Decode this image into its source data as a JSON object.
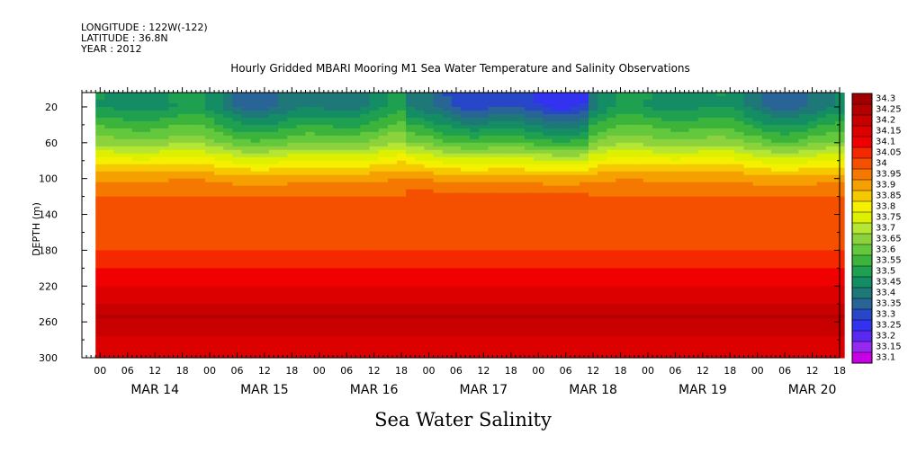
{
  "header": {
    "longitude": "LONGITUDE : 122W(-122)",
    "latitude": "LATITUDE : 36.8N",
    "year": "YEAR : 2012"
  },
  "title": "Hourly Gridded MBARI Mooring M1 Sea Water Temperature and Salinity Observations",
  "bottom_title": "Sea Water Salinity",
  "chart_data": {
    "type": "heatmap",
    "title": "Hourly Gridded MBARI Mooring M1 Sea Water Temperature and Salinity Observations",
    "variable": "Sea Water Salinity",
    "ylabel": "DEPTH (m)",
    "y_ticks": [
      20,
      60,
      100,
      140,
      180,
      220,
      260,
      300
    ],
    "ylim": [
      300,
      4
    ],
    "x_hour_ticks": [
      "00",
      "06",
      "12",
      "18",
      "00",
      "06",
      "12",
      "18",
      "00",
      "06",
      "12",
      "18",
      "00",
      "06",
      "12",
      "18",
      "00",
      "06",
      "12",
      "18",
      "00",
      "06",
      "12",
      "18",
      "00",
      "06",
      "12",
      "18"
    ],
    "x_day_labels": [
      "MAR 14",
      "MAR 15",
      "MAR 16",
      "MAR 17",
      "MAR 18",
      "MAR 19",
      "MAR 20"
    ],
    "x_range_hours": [
      0,
      166
    ],
    "data_start_hour": 3,
    "colorbar_levels": [
      34.3,
      34.25,
      34.2,
      34.15,
      34.1,
      34.05,
      34,
      33.95,
      33.9,
      33.85,
      33.8,
      33.75,
      33.7,
      33.65,
      33.6,
      33.55,
      33.5,
      33.45,
      33.4,
      33.35,
      33.3,
      33.25,
      33.2,
      33.15,
      33.1
    ],
    "colorbar_colors": [
      "#a00000",
      "#b40000",
      "#c80000",
      "#dc0000",
      "#f00000",
      "#f52800",
      "#f55000",
      "#f57800",
      "#f5a000",
      "#f5c800",
      "#f5f000",
      "#dcf000",
      "#b4e632",
      "#8cd23c",
      "#64c83c",
      "#3cb43c",
      "#1ea050",
      "#148c64",
      "#1e7878",
      "#286496",
      "#2846c8",
      "#3232f0",
      "#5a28f0",
      "#9628f0",
      "#c800e6"
    ],
    "depth_profile": [
      {
        "depth": 4,
        "salinity": 33.45
      },
      {
        "depth": 20,
        "salinity": 33.45
      },
      {
        "depth": 40,
        "salinity": 33.55
      },
      {
        "depth": 60,
        "salinity": 33.65
      },
      {
        "depth": 80,
        "salinity": 33.8
      },
      {
        "depth": 100,
        "salinity": 33.93
      },
      {
        "depth": 120,
        "salinity": 34.0
      },
      {
        "depth": 140,
        "salinity": 34.03
      },
      {
        "depth": 180,
        "salinity": 34.05
      },
      {
        "depth": 220,
        "salinity": 34.15
      },
      {
        "depth": 240,
        "salinity": 34.2
      },
      {
        "depth": 255,
        "salinity": 34.25
      },
      {
        "depth": 275,
        "salinity": 34.2
      },
      {
        "depth": 300,
        "salinity": 34.15
      }
    ]
  }
}
